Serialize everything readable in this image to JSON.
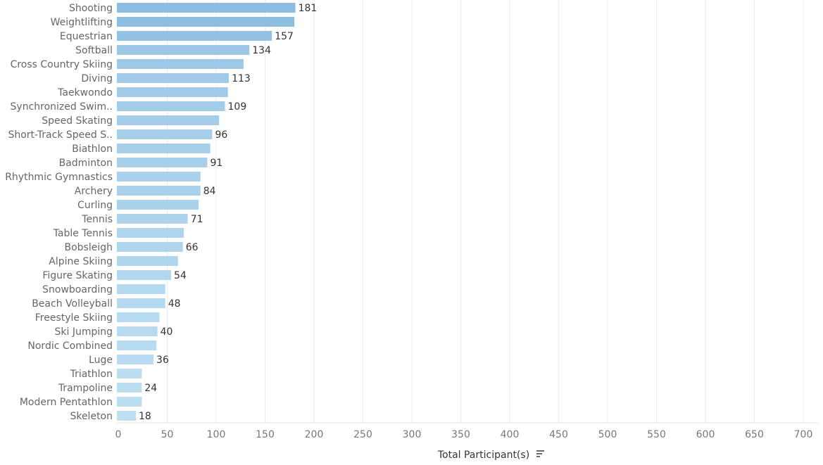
{
  "chart_data": {
    "type": "bar",
    "orientation": "horizontal",
    "xlabel": "Total Participant(s)",
    "sort_icon": "sort-descending-icon",
    "xlim": [
      0,
      720
    ],
    "x_ticks": [
      0,
      50,
      100,
      150,
      200,
      250,
      300,
      350,
      400,
      450,
      500,
      550,
      600,
      650,
      700
    ],
    "grid": "vertical",
    "bar_color_range": [
      "#8dbde0",
      "#bddff2"
    ],
    "categories": [
      "Shooting",
      "Weightlifting",
      "Equestrian",
      "Softball",
      "Cross Country Skiing",
      "Diving",
      "Taekwondo",
      "Synchronized Swim..",
      "Speed Skating",
      "Short-Track Speed S..",
      "Biathlon",
      "Badminton",
      "Rhythmic Gymnastics",
      "Archery",
      "Curling",
      "Tennis",
      "Table Tennis",
      "Bobsleigh",
      "Alpine Skiing",
      "Figure Skating",
      "Snowboarding",
      "Beach Volleyball",
      "Freestyle Skiing",
      "Ski Jumping",
      "Nordic Combined",
      "Luge",
      "Triathlon",
      "Trampoline",
      "Modern Pentathlon",
      "Skeleton"
    ],
    "values": [
      181,
      180,
      157,
      134,
      128,
      113,
      112,
      109,
      103,
      96,
      94,
      91,
      84,
      84,
      82,
      71,
      67,
      66,
      61,
      54,
      48,
      48,
      42,
      40,
      39,
      36,
      24,
      24,
      24,
      18
    ],
    "value_labels": [
      "181",
      "",
      "157",
      "134",
      "",
      "113",
      "",
      "109",
      "",
      "96",
      "",
      "91",
      "",
      "84",
      "",
      "71",
      "",
      "66",
      "",
      "54",
      "",
      "48",
      "",
      "40",
      "",
      "36",
      "",
      "24",
      "",
      "18"
    ]
  }
}
